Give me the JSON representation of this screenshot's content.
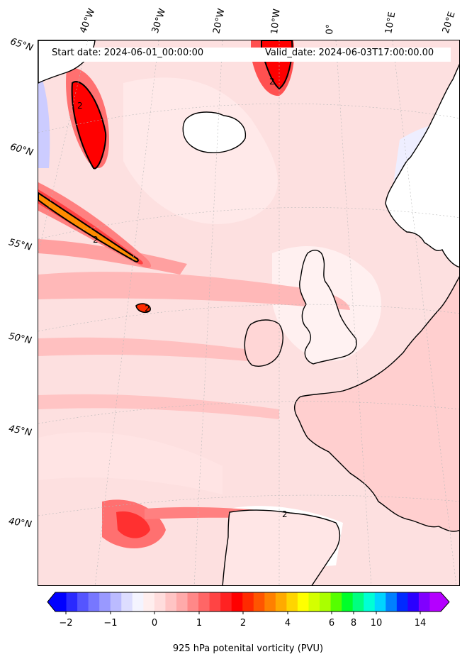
{
  "header": {
    "start_date": "Start date: 2024-06-01_00:00:00",
    "valid_date": "Valid_date: 2024-06-03T17:00:00.00"
  },
  "longitude_labels": [
    "40°W",
    "30°W",
    "20°W",
    "10°W",
    "0°",
    "10°E",
    "20°E"
  ],
  "latitude_labels": [
    "65°N",
    "60°N",
    "55°N",
    "50°N",
    "45°N",
    "40°N"
  ],
  "colorbar": {
    "tick_labels": [
      "−2",
      "−1",
      "0",
      "1",
      "2",
      "4",
      "6",
      "8",
      "10",
      "14"
    ],
    "title": "925 hPa potenital vorticity (PVU)",
    "colors": [
      "#0000ff",
      "#2a2aff",
      "#5555ff",
      "#7777ff",
      "#9999ff",
      "#bbbbff",
      "#ddddff",
      "#f4f4ff",
      "#ffeeee",
      "#ffdddd",
      "#ffc4c4",
      "#ffaaaa",
      "#ff8888",
      "#ff6666",
      "#ff4444",
      "#ff2222",
      "#ff0000",
      "#ff2a00",
      "#ff5500",
      "#ff8000",
      "#ffaa00",
      "#ffd500",
      "#ffff00",
      "#d4ff00",
      "#aaff00",
      "#55ff00",
      "#00ff2a",
      "#00ff80",
      "#00ffd5",
      "#00d4ff",
      "#0080ff",
      "#002aff",
      "#2a00ff",
      "#8000ff",
      "#b400ff"
    ]
  },
  "contour_label": "2"
}
